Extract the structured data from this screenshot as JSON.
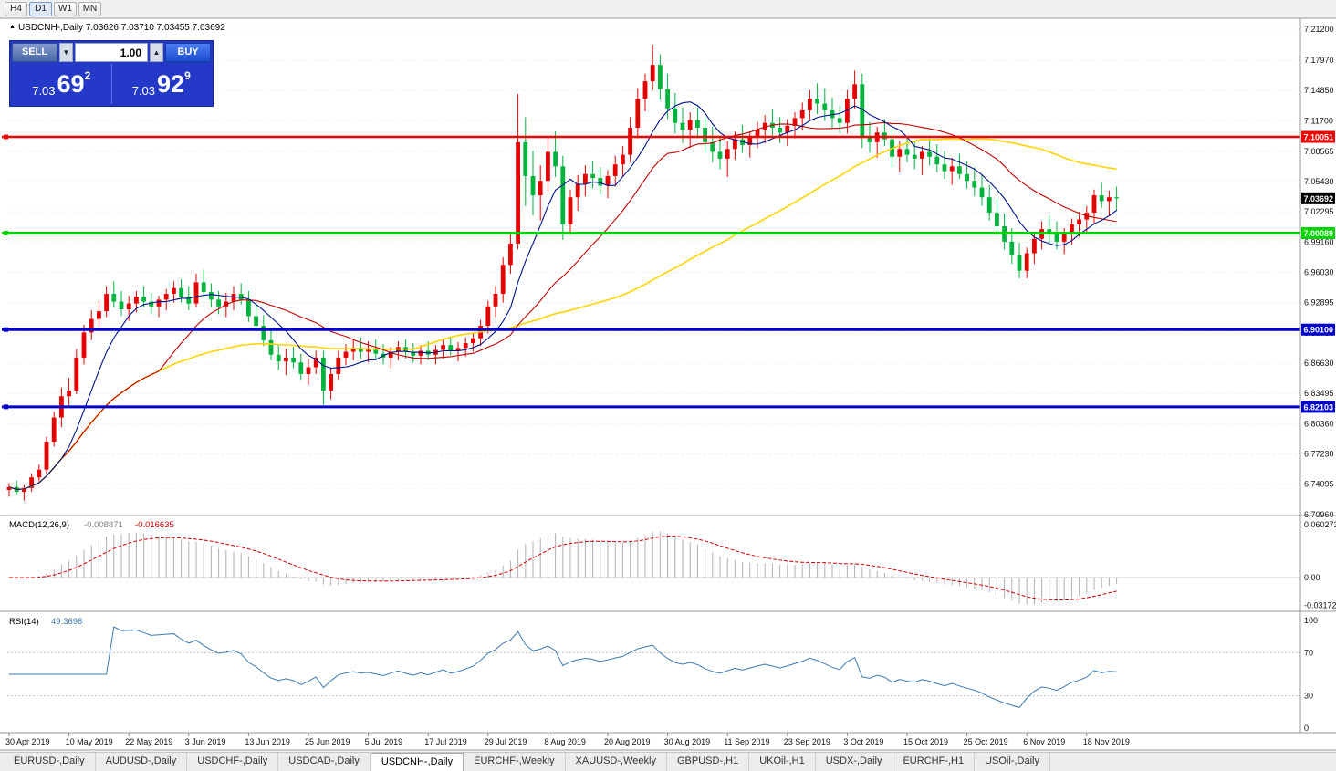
{
  "topbar": {
    "timeframes": [
      {
        "label": "H4",
        "active": false
      },
      {
        "label": "D1",
        "active": true
      },
      {
        "label": "W1",
        "active": false
      },
      {
        "label": "MN",
        "active": false
      }
    ]
  },
  "chart_header": {
    "pointer": "▲",
    "text": "USDCNH-,Daily 7.03626 7.03710 7.03455 7.03692"
  },
  "trade_panel": {
    "sell_label": "SELL",
    "buy_label": "BUY",
    "volume": "1.00",
    "dropdown_icon": "▼",
    "stepper_icon": "▲",
    "sell_price": {
      "prefix": "7.03",
      "big": "69",
      "sup": "2"
    },
    "buy_price": {
      "prefix": "7.03",
      "big": "92",
      "sup": "9"
    }
  },
  "price_axis": {
    "labels": [
      "7.21200",
      "7.17970",
      "7.14850",
      "7.11700",
      "7.08565",
      "7.05430",
      "7.02295",
      "6.99160",
      "6.96030",
      "6.92895",
      "6.89760",
      "6.86630",
      "6.83495",
      "6.80360",
      "6.77230",
      "6.74095",
      "6.70960"
    ]
  },
  "levels": [
    {
      "label": "7.10051",
      "value": 7.10051,
      "color": "#f00000",
      "width": 2.5
    },
    {
      "label": "7.00089",
      "value": 7.00089,
      "color": "#00d400",
      "width": 3
    },
    {
      "label": "6.90100",
      "value": 6.901,
      "color": "#0000cc",
      "width": 3
    },
    {
      "label": "6.82103",
      "value": 6.82103,
      "color": "#0000cc",
      "width": 3
    }
  ],
  "current_price": {
    "label": "7.03692",
    "value": 7.03692,
    "bg": "#000000"
  },
  "macd_panel": {
    "title": "MACD(12,26,9)",
    "value1": "-0.008871",
    "value2": "-0.016635",
    "axis": [
      "0.060273",
      "0.00",
      "-0.031725"
    ]
  },
  "rsi_panel": {
    "title": "RSI(14)",
    "value": "49.3698",
    "axis": [
      "100",
      "70",
      "30",
      "0"
    ],
    "levels": [
      70,
      30
    ]
  },
  "date_axis": {
    "labels": [
      {
        "text": "30 Apr 2019",
        "bar": 0
      },
      {
        "text": "10 May 2019",
        "bar": 8
      },
      {
        "text": "22 May 2019",
        "bar": 16
      },
      {
        "text": "3 Jun 2019",
        "bar": 24
      },
      {
        "text": "13 Jun 2019",
        "bar": 32
      },
      {
        "text": "25 Jun 2019",
        "bar": 40
      },
      {
        "text": "5 Jul 2019",
        "bar": 48
      },
      {
        "text": "17 Jul 2019",
        "bar": 56
      },
      {
        "text": "29 Jul 2019",
        "bar": 64
      },
      {
        "text": "8 Aug 2019",
        "bar": 72
      },
      {
        "text": "20 Aug 2019",
        "bar": 80
      },
      {
        "text": "30 Aug 2019",
        "bar": 88
      },
      {
        "text": "11 Sep 2019",
        "bar": 96
      },
      {
        "text": "23 Sep 2019",
        "bar": 104
      },
      {
        "text": "3 Oct 2019",
        "bar": 112
      },
      {
        "text": "15 Oct 2019",
        "bar": 120
      },
      {
        "text": "25 Oct 2019",
        "bar": 128
      },
      {
        "text": "6 Nov 2019",
        "bar": 136
      },
      {
        "text": "18 Nov 2019",
        "bar": 144
      }
    ]
  },
  "tabs": [
    {
      "label": "EURUSD-,Daily",
      "active": false
    },
    {
      "label": "AUDUSD-,Daily",
      "active": false
    },
    {
      "label": "USDCHF-,Daily",
      "active": false
    },
    {
      "label": "USDCAD-,Daily",
      "active": false
    },
    {
      "label": "USDCNH-,Daily",
      "active": true
    },
    {
      "label": "EURCHF-,Weekly",
      "active": false
    },
    {
      "label": "XAUUSD-,Weekly",
      "active": false
    },
    {
      "label": "GBPUSD-,H1",
      "active": false
    },
    {
      "label": "UKOil-,H1",
      "active": false
    },
    {
      "label": "USDX-,Daily",
      "active": false
    },
    {
      "label": "EURCHF-,H1",
      "active": false
    },
    {
      "label": "USOil-,Daily",
      "active": false
    }
  ],
  "chart_data": {
    "type": "candlestick",
    "symbol": "USDCNH-",
    "timeframe": "Daily",
    "ohlc_current": {
      "open": 7.03626,
      "high": 7.0371,
      "low": 7.03455,
      "close": 7.03692
    },
    "y_range": [
      6.7096,
      7.212
    ],
    "colors": {
      "up": "#e60000",
      "down": "#00b33c",
      "ma_fast": "#00148c",
      "ma_mid": "#c00000",
      "ma_slow": "#ffd400",
      "macd_hist": "#b0b0b0",
      "macd_signal": "#d00000",
      "rsi_line": "#4079ad"
    },
    "ma_periods": {
      "fast": 8,
      "mid": 21,
      "slow": 55
    },
    "indicators": {
      "macd": {
        "params": [
          12,
          26,
          9
        ],
        "main": -0.008871,
        "signal": -0.016635
      },
      "rsi": {
        "period": 14,
        "value": 49.3698
      }
    },
    "candles": [
      [
        6.735,
        6.742,
        6.728,
        6.738
      ],
      [
        6.738,
        6.745,
        6.73,
        6.733
      ],
      [
        6.733,
        6.74,
        6.724,
        6.737
      ],
      [
        6.737,
        6.752,
        6.733,
        6.748
      ],
      [
        6.748,
        6.761,
        6.744,
        6.756
      ],
      [
        6.756,
        6.79,
        6.752,
        6.785
      ],
      [
        6.785,
        6.816,
        6.78,
        6.81
      ],
      [
        6.81,
        6.841,
        6.8,
        6.832
      ],
      [
        6.832,
        6.851,
        6.82,
        6.838
      ],
      [
        6.838,
        6.881,
        6.834,
        6.872
      ],
      [
        6.872,
        6.906,
        6.865,
        6.898
      ],
      [
        6.898,
        6.921,
        6.89,
        6.912
      ],
      [
        6.912,
        6.931,
        6.904,
        6.92
      ],
      [
        6.92,
        6.946,
        6.914,
        6.938
      ],
      [
        6.938,
        6.951,
        6.924,
        6.93
      ],
      [
        6.93,
        6.941,
        6.915,
        6.922
      ],
      [
        6.922,
        6.936,
        6.91,
        6.928
      ],
      [
        6.928,
        6.941,
        6.919,
        6.935
      ],
      [
        6.935,
        6.946,
        6.924,
        6.93
      ],
      [
        6.93,
        6.939,
        6.917,
        6.925
      ],
      [
        6.925,
        6.936,
        6.914,
        6.932
      ],
      [
        6.932,
        6.943,
        6.921,
        6.938
      ],
      [
        6.938,
        6.951,
        6.929,
        6.944
      ],
      [
        6.944,
        6.953,
        6.929,
        6.935
      ],
      [
        6.935,
        6.946,
        6.921,
        6.928
      ],
      [
        6.928,
        6.959,
        6.924,
        6.95
      ],
      [
        6.95,
        6.963,
        6.934,
        6.94
      ],
      [
        6.94,
        6.949,
        6.924,
        6.932
      ],
      [
        6.932,
        6.941,
        6.917,
        6.925
      ],
      [
        6.925,
        6.939,
        6.914,
        6.93
      ],
      [
        6.93,
        6.946,
        6.921,
        6.938
      ],
      [
        6.938,
        6.949,
        6.927,
        6.932
      ],
      [
        6.932,
        6.941,
        6.909,
        6.915
      ],
      [
        6.915,
        6.926,
        6.899,
        6.905
      ],
      [
        6.905,
        6.916,
        6.884,
        6.89
      ],
      [
        6.89,
        6.901,
        6.869,
        6.875
      ],
      [
        6.875,
        6.886,
        6.859,
        6.868
      ],
      [
        6.868,
        6.881,
        6.854,
        6.872
      ],
      [
        6.872,
        6.883,
        6.861,
        6.867
      ],
      [
        6.867,
        6.876,
        6.849,
        6.855
      ],
      [
        6.855,
        6.871,
        6.844,
        6.862
      ],
      [
        6.862,
        6.879,
        6.855,
        6.872
      ],
      [
        6.872,
        6.879,
        6.823,
        6.838
      ],
      [
        6.838,
        6.861,
        6.829,
        6.855
      ],
      [
        6.855,
        6.879,
        6.849,
        6.872
      ],
      [
        6.872,
        6.886,
        6.864,
        6.878
      ],
      [
        6.878,
        6.891,
        6.869,
        6.882
      ],
      [
        6.882,
        6.893,
        6.871,
        6.878
      ],
      [
        6.878,
        6.889,
        6.867,
        6.88
      ],
      [
        6.88,
        6.891,
        6.869,
        6.876
      ],
      [
        6.876,
        6.886,
        6.865,
        6.872
      ],
      [
        6.872,
        6.883,
        6.861,
        6.878
      ],
      [
        6.878,
        6.889,
        6.869,
        6.883
      ],
      [
        6.883,
        6.891,
        6.871,
        6.878
      ],
      [
        6.878,
        6.887,
        6.867,
        6.874
      ],
      [
        6.874,
        6.885,
        6.865,
        6.879
      ],
      [
        6.879,
        6.889,
        6.869,
        6.875
      ],
      [
        6.875,
        6.885,
        6.865,
        6.88
      ],
      [
        6.88,
        6.891,
        6.871,
        6.885
      ],
      [
        6.885,
        6.894,
        6.874,
        6.879
      ],
      [
        6.879,
        6.888,
        6.868,
        6.882
      ],
      [
        6.882,
        6.893,
        6.873,
        6.887
      ],
      [
        6.887,
        6.898,
        6.878,
        6.892
      ],
      [
        6.892,
        6.911,
        6.884,
        6.905
      ],
      [
        6.905,
        6.931,
        6.897,
        6.925
      ],
      [
        6.925,
        6.946,
        6.914,
        6.938
      ],
      [
        6.938,
        6.976,
        6.929,
        6.968
      ],
      [
        6.968,
        7.001,
        6.959,
        6.99
      ],
      [
        6.99,
        7.145,
        6.984,
        7.095
      ],
      [
        7.095,
        7.121,
        7.029,
        7.06
      ],
      [
        7.06,
        7.086,
        7.019,
        7.04
      ],
      [
        7.04,
        7.071,
        7.014,
        7.055
      ],
      [
        7.055,
        7.101,
        7.044,
        7.085
      ],
      [
        7.085,
        7.106,
        7.059,
        7.07
      ],
      [
        7.07,
        7.081,
        6.994,
        7.01
      ],
      [
        7.01,
        7.046,
        6.999,
        7.038
      ],
      [
        7.038,
        7.061,
        7.024,
        7.052
      ],
      [
        7.052,
        7.071,
        7.039,
        7.062
      ],
      [
        7.062,
        7.076,
        7.047,
        7.058
      ],
      [
        7.058,
        7.069,
        7.041,
        7.05
      ],
      [
        7.05,
        7.066,
        7.037,
        7.06
      ],
      [
        7.06,
        7.081,
        7.049,
        7.072
      ],
      [
        7.072,
        7.091,
        7.059,
        7.082
      ],
      [
        7.082,
        7.121,
        7.074,
        7.11
      ],
      [
        7.11,
        7.151,
        7.099,
        7.14
      ],
      [
        7.14,
        7.166,
        7.127,
        7.158
      ],
      [
        7.158,
        7.196,
        7.149,
        7.175
      ],
      [
        7.175,
        7.186,
        7.139,
        7.15
      ],
      [
        7.15,
        7.166,
        7.119,
        7.13
      ],
      [
        7.13,
        7.146,
        7.104,
        7.115
      ],
      [
        7.115,
        7.131,
        7.094,
        7.108
      ],
      [
        7.108,
        7.126,
        7.089,
        7.118
      ],
      [
        7.118,
        7.131,
        7.099,
        7.11
      ],
      [
        7.11,
        7.121,
        7.084,
        7.095
      ],
      [
        7.095,
        7.111,
        7.074,
        7.085
      ],
      [
        7.085,
        7.101,
        7.067,
        7.078
      ],
      [
        7.078,
        7.096,
        7.059,
        7.088
      ],
      [
        7.088,
        7.106,
        7.077,
        7.098
      ],
      [
        7.098,
        7.113,
        7.084,
        7.092
      ],
      [
        7.092,
        7.106,
        7.079,
        7.1
      ],
      [
        7.1,
        7.116,
        7.089,
        7.108
      ],
      [
        7.108,
        7.123,
        7.094,
        7.115
      ],
      [
        7.115,
        7.129,
        7.101,
        7.11
      ],
      [
        7.11,
        7.121,
        7.094,
        7.105
      ],
      [
        7.105,
        7.119,
        7.091,
        7.112
      ],
      [
        7.112,
        7.126,
        7.099,
        7.12
      ],
      [
        7.12,
        7.136,
        7.107,
        7.128
      ],
      [
        7.128,
        7.149,
        7.117,
        7.14
      ],
      [
        7.14,
        7.156,
        7.124,
        7.135
      ],
      [
        7.135,
        7.151,
        7.117,
        7.128
      ],
      [
        7.128,
        7.141,
        7.109,
        7.12
      ],
      [
        7.12,
        7.133,
        7.104,
        7.115
      ],
      [
        7.115,
        7.149,
        7.104,
        7.14
      ],
      [
        7.14,
        7.169,
        7.129,
        7.155
      ],
      [
        7.155,
        7.166,
        7.089,
        7.1
      ],
      [
        7.1,
        7.116,
        7.084,
        7.095
      ],
      [
        7.095,
        7.111,
        7.079,
        7.105
      ],
      [
        7.105,
        7.119,
        7.091,
        7.098
      ],
      [
        7.098,
        7.109,
        7.069,
        7.08
      ],
      [
        7.08,
        7.096,
        7.064,
        7.088
      ],
      [
        7.088,
        7.101,
        7.074,
        7.082
      ],
      [
        7.082,
        7.096,
        7.067,
        7.078
      ],
      [
        7.078,
        7.091,
        7.061,
        7.085
      ],
      [
        7.085,
        7.099,
        7.071,
        7.08
      ],
      [
        7.08,
        7.093,
        7.064,
        7.072
      ],
      [
        7.072,
        7.086,
        7.057,
        7.065
      ],
      [
        7.065,
        7.079,
        7.051,
        7.07
      ],
      [
        7.07,
        7.083,
        7.057,
        7.062
      ],
      [
        7.062,
        7.076,
        7.047,
        7.055
      ],
      [
        7.055,
        7.069,
        7.039,
        7.048
      ],
      [
        7.048,
        7.061,
        7.029,
        7.038
      ],
      [
        7.038,
        7.051,
        7.014,
        7.022
      ],
      [
        7.022,
        7.036,
        6.999,
        7.008
      ],
      [
        7.008,
        7.021,
        6.984,
        6.992
      ],
      [
        6.992,
        7.006,
        6.969,
        6.978
      ],
      [
        6.978,
        6.991,
        6.954,
        6.962
      ],
      [
        6.962,
        6.986,
        6.954,
        6.98
      ],
      [
        6.98,
        7.001,
        6.969,
        6.995
      ],
      [
        6.995,
        7.013,
        6.984,
        7.005
      ],
      [
        7.005,
        7.019,
        6.991,
        7.0
      ],
      [
        7.0,
        7.013,
        6.984,
        6.992
      ],
      [
        6.992,
        7.006,
        6.979,
        7.0
      ],
      [
        7.0,
        7.016,
        6.989,
        7.01
      ],
      [
        7.01,
        7.023,
        6.997,
        7.015
      ],
      [
        7.015,
        7.029,
        7.001,
        7.022
      ],
      [
        7.022,
        7.046,
        7.011,
        7.04
      ],
      [
        7.04,
        7.053,
        7.027,
        7.034
      ],
      [
        7.034,
        7.045,
        7.019,
        7.038
      ],
      [
        7.038,
        7.049,
        7.024,
        7.0369
      ]
    ]
  }
}
